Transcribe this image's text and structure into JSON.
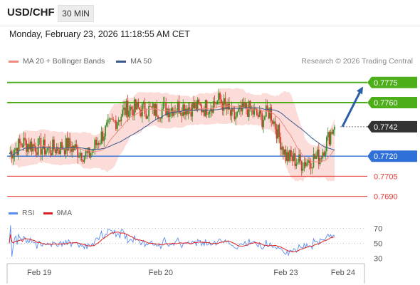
{
  "header": {
    "pair": "USD/CHF",
    "timeframe_button": "30 MIN"
  },
  "datetime": "Monday, February 23, 2026 11:18:55 AM CET",
  "legend": {
    "items": [
      {
        "label": "MA 20 + Bollinger Bands",
        "color": "#f08a80"
      },
      {
        "label": "MA 50",
        "color": "#3a5a8c"
      }
    ],
    "credit": "Research © 2026 Trading Central"
  },
  "rsi_legend": {
    "items": [
      {
        "label": "RSI",
        "color": "#5b8def"
      },
      {
        "label": "9MA",
        "color": "#e02020"
      }
    ]
  },
  "colors": {
    "target": "#4caf1a",
    "pivot": "#2f6fd8",
    "support": "#e53935",
    "current": "#333333",
    "arrow": "#2a5fa8"
  },
  "chart_data": [
    {
      "type": "candlestick",
      "pair": "USD/CHF",
      "ylim": [
        0.7685,
        0.7785
      ],
      "x_labels": [
        {
          "label": "Feb 19",
          "pos": 0.09
        },
        {
          "label": "Feb 20",
          "pos": 0.43
        },
        {
          "label": "Feb 23",
          "pos": 0.78
        },
        {
          "label": "Feb 24",
          "pos": 0.94
        }
      ],
      "levels": [
        {
          "value": 0.7775,
          "label": "0.7775",
          "kind": "target"
        },
        {
          "value": 0.776,
          "label": "0.7760",
          "kind": "target"
        },
        {
          "value": 0.7742,
          "label": "0.7742",
          "kind": "current"
        },
        {
          "value": 0.772,
          "label": "0.7720",
          "kind": "pivot"
        },
        {
          "value": 0.7705,
          "label": "0.7705",
          "kind": "support"
        },
        {
          "value": 0.769,
          "label": "0.7690",
          "kind": "support"
        }
      ],
      "forecast_arrow": {
        "from": 0.7742,
        "to": 0.7772
      }
    },
    {
      "type": "line",
      "name": "RSI",
      "ylim": [
        25,
        78
      ],
      "yticks": [
        30,
        50,
        70
      ],
      "guides": [
        30,
        50,
        70
      ]
    }
  ]
}
